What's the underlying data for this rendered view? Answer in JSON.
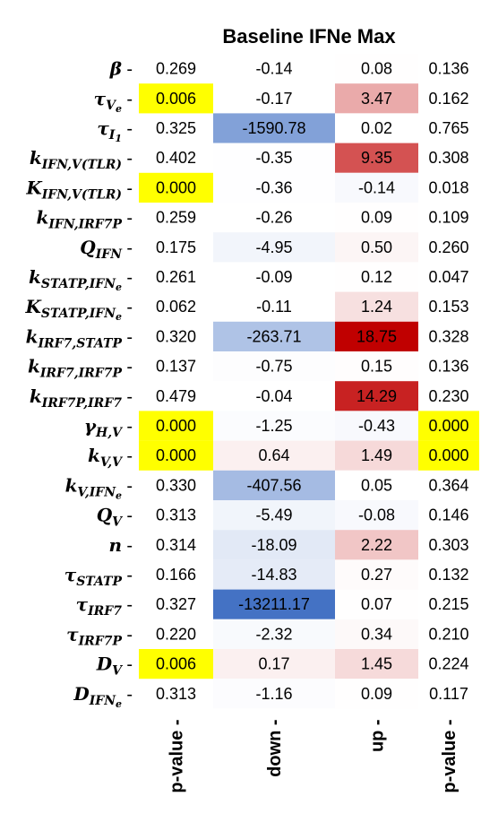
{
  "chart_data": {
    "type": "heatmap",
    "title": "Baseline IFNe Max",
    "columns": [
      "p-value",
      "down",
      "up",
      "p-value"
    ],
    "rows": [
      {
        "label": {
          "base": "β",
          "sub": "",
          "subsub": ""
        },
        "values": [
          "0.269",
          "-0.14",
          "0.08",
          "0.136"
        ]
      },
      {
        "label": {
          "base": "τ",
          "sub": "V",
          "subsub": "e"
        },
        "values": [
          "0.006",
          "-0.17",
          "3.47",
          "0.162"
        ]
      },
      {
        "label": {
          "base": "τ",
          "sub": "I",
          "subsub": "1"
        },
        "values": [
          "0.325",
          "-1590.78",
          "0.02",
          "0.765"
        ]
      },
      {
        "label": {
          "base": "k",
          "sub": "IFN,V(TLR)",
          "subsub": ""
        },
        "values": [
          "0.402",
          "-0.35",
          "9.35",
          "0.308"
        ]
      },
      {
        "label": {
          "base": "K",
          "sub": "IFN,V(TLR)",
          "subsub": ""
        },
        "values": [
          "0.000",
          "-0.36",
          "-0.14",
          "0.018"
        ]
      },
      {
        "label": {
          "base": "k",
          "sub": "IFN,IRF7P",
          "subsub": ""
        },
        "values": [
          "0.259",
          "-0.26",
          "0.09",
          "0.109"
        ]
      },
      {
        "label": {
          "base": "Q",
          "sub": "IFN",
          "subsub": ""
        },
        "values": [
          "0.175",
          "-4.95",
          "0.50",
          "0.260"
        ]
      },
      {
        "label": {
          "base": "k",
          "sub": "STATP,IFN",
          "subsub": "e"
        },
        "values": [
          "0.261",
          "-0.09",
          "0.12",
          "0.047"
        ]
      },
      {
        "label": {
          "base": "K",
          "sub": "STATP,IFN",
          "subsub": "e"
        },
        "values": [
          "0.062",
          "-0.11",
          "1.24",
          "0.153"
        ]
      },
      {
        "label": {
          "base": "k",
          "sub": "IRF7,STATP",
          "subsub": ""
        },
        "values": [
          "0.320",
          "-263.71",
          "18.75",
          "0.328"
        ]
      },
      {
        "label": {
          "base": "k",
          "sub": "IRF7,IRF7P",
          "subsub": ""
        },
        "values": [
          "0.137",
          "-0.75",
          "0.15",
          "0.136"
        ]
      },
      {
        "label": {
          "base": "k",
          "sub": "IRF7P,IRF7",
          "subsub": ""
        },
        "values": [
          "0.479",
          "-0.04",
          "14.29",
          "0.230"
        ]
      },
      {
        "label": {
          "base": "γ",
          "sub": "H,V",
          "subsub": ""
        },
        "values": [
          "0.000",
          "-1.25",
          "-0.43",
          "0.000"
        ]
      },
      {
        "label": {
          "base": "k",
          "sub": "V,V",
          "subsub": ""
        },
        "values": [
          "0.000",
          "0.64",
          "1.49",
          "0.000"
        ]
      },
      {
        "label": {
          "base": "k",
          "sub": "V,IFN",
          "subsub": "e"
        },
        "values": [
          "0.330",
          "-407.56",
          "0.05",
          "0.364"
        ]
      },
      {
        "label": {
          "base": "Q",
          "sub": "V",
          "subsub": ""
        },
        "values": [
          "0.313",
          "-5.49",
          "-0.08",
          "0.146"
        ]
      },
      {
        "label": {
          "base": "n",
          "sub": "",
          "subsub": ""
        },
        "values": [
          "0.314",
          "-18.09",
          "2.22",
          "0.303"
        ]
      },
      {
        "label": {
          "base": "τ",
          "sub": "STATP",
          "subsub": ""
        },
        "values": [
          "0.166",
          "-14.83",
          "0.27",
          "0.132"
        ]
      },
      {
        "label": {
          "base": "τ",
          "sub": "IRF7",
          "subsub": ""
        },
        "values": [
          "0.327",
          "-13211.17",
          "0.07",
          "0.215"
        ]
      },
      {
        "label": {
          "base": "τ",
          "sub": "IRF7P",
          "subsub": ""
        },
        "values": [
          "0.220",
          "-2.32",
          "0.34",
          "0.210"
        ]
      },
      {
        "label": {
          "base": "D",
          "sub": "V",
          "subsub": ""
        },
        "values": [
          "0.006",
          "0.17",
          "1.45",
          "0.224"
        ]
      },
      {
        "label": {
          "base": "D",
          "sub": "IFN",
          "subsub": "e"
        },
        "values": [
          "0.313",
          "-1.16",
          "0.09",
          "0.117"
        ]
      }
    ],
    "highlight": {
      "rule": "p-value < 0.01",
      "color": "#ffff00"
    },
    "colormap": {
      "negative": "#4472c4",
      "positive": "#c00000",
      "neutral": "#ffffff"
    },
    "grid": false
  }
}
